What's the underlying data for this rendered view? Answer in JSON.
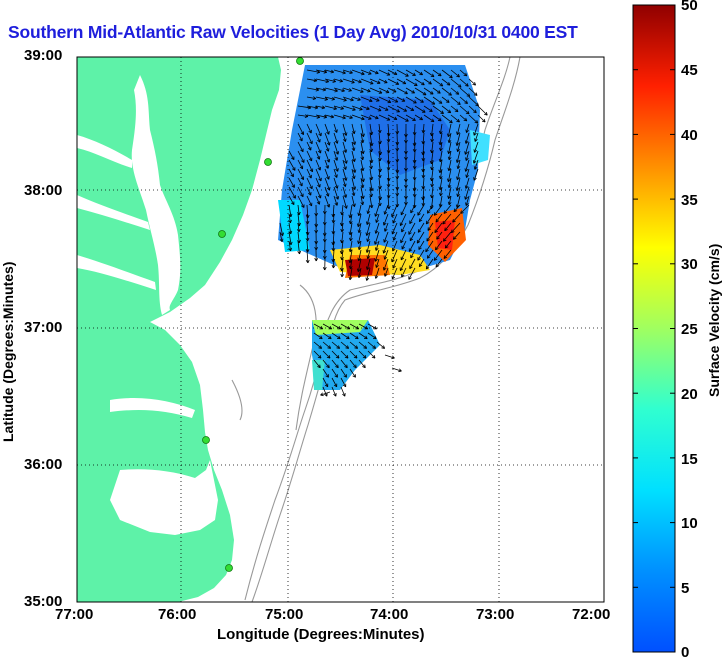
{
  "title": "Southern Mid-Atlantic Raw Velocities (1 Day Avg) 2010/10/31 0400 EST",
  "ylabel": "Latitude (Degrees:Minutes)",
  "xlabel": "Longitude (Degrees:Minutes)",
  "colorbar_label": "Surface Velocity (cm/s)",
  "lat_ticks": [
    "39:00",
    "38:00",
    "37:00",
    "36:00",
    "35:00"
  ],
  "lon_ticks": [
    "77:00",
    "76:00",
    "75:00",
    "74:00",
    "73:00",
    "72:00"
  ],
  "colorbar_ticks": [
    "50",
    "45",
    "40",
    "35",
    "30",
    "25",
    "20",
    "15",
    "10",
    "5",
    "0"
  ],
  "colors": {
    "land": "#5ef2a8",
    "title": "#1e1edc",
    "bathymetry": "#999999",
    "station": "#33dd33"
  },
  "map": {
    "lon_range": [
      "77:00",
      "72:00"
    ],
    "lat_range": [
      "35:00",
      "39:00"
    ],
    "grid": "dotted"
  },
  "colorbar": {
    "min": 0,
    "max": 50,
    "colormap": "jet"
  }
}
